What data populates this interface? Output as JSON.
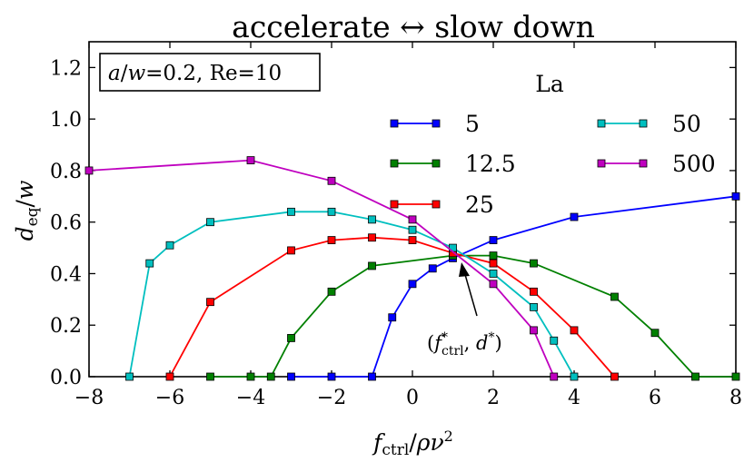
{
  "chart_data": {
    "type": "line",
    "title": "accelerate ↔ slow down",
    "xlabel": "f_ctrl/ρν²",
    "ylabel": "d_eq/w",
    "xlim": [
      -8,
      8
    ],
    "ylim": [
      0,
      1.3
    ],
    "xticks": [
      -8,
      -6,
      -4,
      -2,
      0,
      2,
      4,
      6,
      8
    ],
    "yticks": [
      0.0,
      0.2,
      0.4,
      0.6,
      0.8,
      1.0,
      1.2
    ],
    "xtick_labels": [
      "−8",
      "−6",
      "−4",
      "−2",
      "0",
      "2",
      "4",
      "6",
      "8"
    ],
    "ytick_labels": [
      "0.0",
      "0.2",
      "0.4",
      "0.6",
      "0.8",
      "1.0",
      "1.2"
    ],
    "info_box": "a/w=0.2, Re=10",
    "legend_title": "La",
    "legend_position": "top-right",
    "annotation": {
      "text": "(f*ctrl, d*)",
      "x": 1.2,
      "y": 0.47
    },
    "series": [
      {
        "name": "5",
        "color": "#0000ff",
        "x": [
          -3,
          -2,
          -1,
          -0.5,
          0,
          0.5,
          1,
          2,
          4,
          8
        ],
        "y": [
          0.0,
          0.0,
          0.0,
          0.23,
          0.36,
          0.42,
          0.46,
          0.53,
          0.62,
          0.7
        ]
      },
      {
        "name": "12.5",
        "color": "#008000",
        "x": [
          -5,
          -4,
          -3.5,
          -3,
          -2,
          -1,
          1,
          2,
          3,
          5,
          6,
          7,
          8
        ],
        "y": [
          0.0,
          0.0,
          0.0,
          0.15,
          0.33,
          0.43,
          0.47,
          0.47,
          0.44,
          0.31,
          0.17,
          0.0,
          0.0
        ]
      },
      {
        "name": "25",
        "color": "#ff0000",
        "x": [
          -6,
          -5,
          -3,
          -2,
          -1,
          0,
          1,
          2,
          3,
          4,
          5
        ],
        "y": [
          0.0,
          0.29,
          0.49,
          0.53,
          0.54,
          0.53,
          0.48,
          0.44,
          0.33,
          0.18,
          0.0
        ]
      },
      {
        "name": "50",
        "color": "#00bfbf",
        "x": [
          -7,
          -6.5,
          -6,
          -5,
          -3,
          -2,
          -1,
          0,
          1,
          2,
          3,
          3.5,
          4
        ],
        "y": [
          0.0,
          0.44,
          0.51,
          0.6,
          0.64,
          0.64,
          0.61,
          0.57,
          0.5,
          0.4,
          0.27,
          0.14,
          0.0
        ]
      },
      {
        "name": "500",
        "color": "#bf00bf",
        "x": [
          -8,
          -4,
          -2,
          0,
          2,
          3,
          3.5
        ],
        "y": [
          0.8,
          0.84,
          0.76,
          0.61,
          0.36,
          0.18,
          0.0
        ]
      }
    ]
  }
}
